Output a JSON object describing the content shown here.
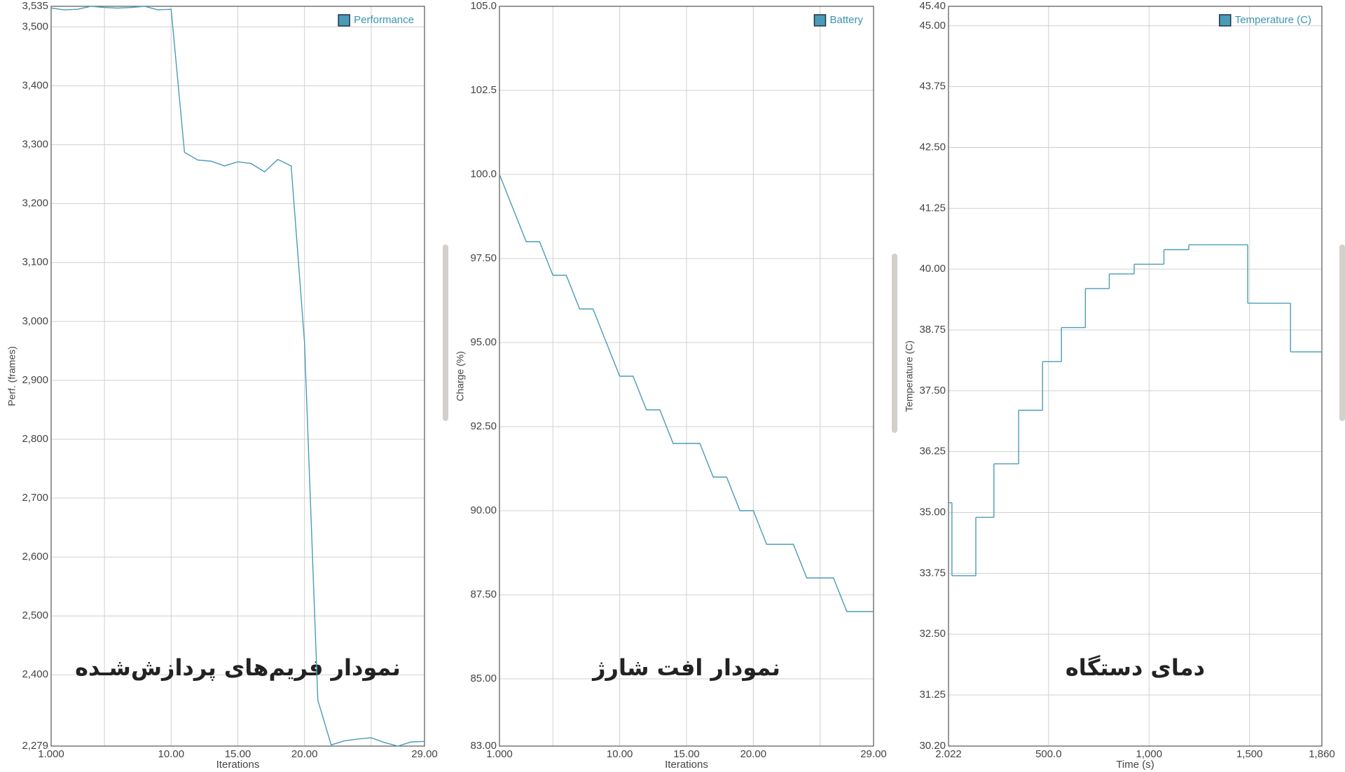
{
  "chart_data": [
    {
      "type": "line",
      "annotation": "نمودار فریم‌های پردازش‌شـده",
      "x_label": "Iterations",
      "y_label": "Perf. (frames)",
      "x": [
        1,
        2,
        3,
        4,
        5,
        6,
        7,
        8,
        9,
        10,
        11,
        12,
        13,
        14,
        15,
        16,
        17,
        18,
        19,
        20,
        21,
        22,
        23,
        24,
        25,
        26,
        27,
        28,
        29
      ],
      "series": [
        {
          "name": "Performance",
          "color": "#4a9bb8",
          "values": [
            3532,
            3529,
            3530,
            3535,
            3533,
            3532,
            3533,
            3535,
            3529,
            3530,
            3287,
            3274,
            3272,
            3264,
            3271,
            3268,
            3254,
            3275,
            3264,
            2965,
            2357,
            2281,
            2288,
            2291,
            2293,
            2285,
            2279,
            2286,
            2287
          ]
        }
      ],
      "xlim": [
        1,
        29
      ],
      "xticks": [
        {
          "value": 1,
          "label": "1.000"
        },
        {
          "value": 10,
          "label": "10.00"
        },
        {
          "value": 15,
          "label": "15.00"
        },
        {
          "value": 20,
          "label": "20.00"
        },
        {
          "value": 29,
          "label": "29.00"
        }
      ],
      "xminorticks": [
        5,
        25
      ],
      "ylim": [
        2279,
        3535
      ],
      "yticks": [
        {
          "value": 2279,
          "label": "2,279"
        },
        {
          "value": 2400,
          "label": "2,400"
        },
        {
          "value": 2500,
          "label": "2,500"
        },
        {
          "value": 2600,
          "label": "2,600"
        },
        {
          "value": 2700,
          "label": "2,700"
        },
        {
          "value": 2800,
          "label": "2,800"
        },
        {
          "value": 2900,
          "label": "2,900"
        },
        {
          "value": 3000,
          "label": "3,000"
        },
        {
          "value": 3100,
          "label": "3,100"
        },
        {
          "value": 3200,
          "label": "3,200"
        },
        {
          "value": 3300,
          "label": "3,300"
        },
        {
          "value": 3400,
          "label": "3,400"
        },
        {
          "value": 3500,
          "label": "3,500"
        },
        {
          "value": 3535,
          "label": "3,535"
        }
      ],
      "grid": true,
      "legend": "upper right"
    },
    {
      "type": "line",
      "annotation": "نمودار افت شارژ",
      "x_label": "Iterations",
      "y_label": "Charge (%)",
      "x": [
        1,
        2,
        3,
        4,
        5,
        6,
        7,
        8,
        9,
        10,
        11,
        12,
        13,
        14,
        15,
        16,
        17,
        18,
        19,
        20,
        21,
        22,
        23,
        24,
        25,
        26,
        27,
        28,
        29
      ],
      "series": [
        {
          "name": "Battery",
          "color": "#4a9bb8",
          "values": [
            100,
            99,
            98,
            98,
            97,
            97,
            96,
            96,
            95,
            94,
            94,
            93,
            93,
            92,
            92,
            92,
            91,
            91,
            90,
            90,
            89,
            89,
            89,
            88,
            88,
            88,
            87,
            87,
            87
          ]
        }
      ],
      "xlim": [
        1,
        29
      ],
      "xticks": [
        {
          "value": 1,
          "label": "1.000"
        },
        {
          "value": 10,
          "label": "10.00"
        },
        {
          "value": 15,
          "label": "15.00"
        },
        {
          "value": 20,
          "label": "20.00"
        },
        {
          "value": 29,
          "label": "29.00"
        }
      ],
      "xminorticks": [
        5,
        25
      ],
      "ylim": [
        83,
        105
      ],
      "yticks": [
        {
          "value": 83,
          "label": "83.00"
        },
        {
          "value": 85,
          "label": "85.00"
        },
        {
          "value": 87.5,
          "label": "87.50"
        },
        {
          "value": 90,
          "label": "90.00"
        },
        {
          "value": 92.5,
          "label": "92.50"
        },
        {
          "value": 95,
          "label": "95.00"
        },
        {
          "value": 97.5,
          "label": "97.50"
        },
        {
          "value": 100,
          "label": "100.0"
        },
        {
          "value": 102.5,
          "label": "102.5"
        },
        {
          "value": 105,
          "label": "105.0"
        }
      ],
      "grid": true,
      "legend": "upper right"
    },
    {
      "type": "step",
      "annotation": "دمای دستگاه",
      "x_label": "Time (s)",
      "y_label": "Temperature (C)",
      "x": [
        2.022,
        19,
        138,
        228,
        351,
        470,
        564,
        683,
        802,
        926,
        1074,
        1198,
        1491,
        1704
      ],
      "series": [
        {
          "name": "Temperature (C)",
          "color": "#4a9bb8",
          "values": [
            35.2,
            33.7,
            34.9,
            36.0,
            37.1,
            38.1,
            38.8,
            39.6,
            39.9,
            40.1,
            40.4,
            40.5,
            39.3,
            38.3
          ]
        }
      ],
      "xlim": [
        2.022,
        1860
      ],
      "xticks": [
        {
          "value": 2.022,
          "label": "2.022"
        },
        {
          "value": 500,
          "label": "500.0"
        },
        {
          "value": 1000,
          "label": "1,000"
        },
        {
          "value": 1500,
          "label": "1,500"
        },
        {
          "value": 1860,
          "label": "1,860"
        }
      ],
      "ylim": [
        30.2,
        45.4
      ],
      "yticks": [
        {
          "value": 30.2,
          "label": "30.20"
        },
        {
          "value": 31.25,
          "label": "31.25"
        },
        {
          "value": 32.5,
          "label": "32.50"
        },
        {
          "value": 33.75,
          "label": "33.75"
        },
        {
          "value": 35,
          "label": "35.00"
        },
        {
          "value": 36.25,
          "label": "36.25"
        },
        {
          "value": 37.5,
          "label": "37.50"
        },
        {
          "value": 38.75,
          "label": "38.75"
        },
        {
          "value": 40,
          "label": "40.00"
        },
        {
          "value": 41.25,
          "label": "41.25"
        },
        {
          "value": 42.5,
          "label": "42.50"
        },
        {
          "value": 43.75,
          "label": "43.75"
        },
        {
          "value": 45,
          "label": "45.00"
        },
        {
          "value": 45.4,
          "label": "45.40"
        }
      ],
      "grid": true,
      "legend": "upper right"
    }
  ]
}
